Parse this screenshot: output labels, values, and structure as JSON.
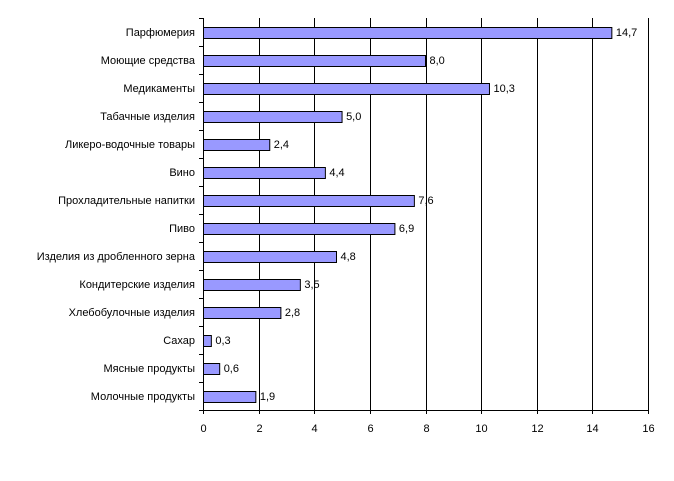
{
  "chart_data": {
    "type": "bar",
    "orientation": "horizontal",
    "title": "",
    "xlabel": "",
    "ylabel": "",
    "categories": [
      "Парфюмерия",
      "Моющие средства",
      "Медикаменты",
      "Табачные изделия",
      "Ликеро-водочные товары",
      "Вино",
      "Прохладительные напитки",
      "Пиво",
      "Изделия из дробленного зерна",
      "Кондитерские изделия",
      "Хлебобулочные изделия",
      "Сахар",
      "Мясные продукты",
      "Молочные продукты"
    ],
    "values": [
      14.7,
      8.0,
      10.3,
      5.0,
      2.4,
      4.4,
      7.6,
      6.9,
      4.8,
      3.5,
      2.8,
      0.3,
      0.6,
      1.9
    ],
    "value_labels": [
      "14,7",
      "8,0",
      "10,3",
      "5,0",
      "2,4",
      "4,4",
      "7,6",
      "6,9",
      "4,8",
      "3,5",
      "2,8",
      "0,3",
      "0,6",
      "1,9"
    ],
    "xlim": [
      0,
      16
    ],
    "xticks": [
      "0",
      "2",
      "4",
      "6",
      "8",
      "10",
      "12",
      "14",
      "16"
    ],
    "grid": "vertical",
    "legend": "none",
    "bar_color": "#9999ff",
    "bar_border_color": "#000000"
  }
}
